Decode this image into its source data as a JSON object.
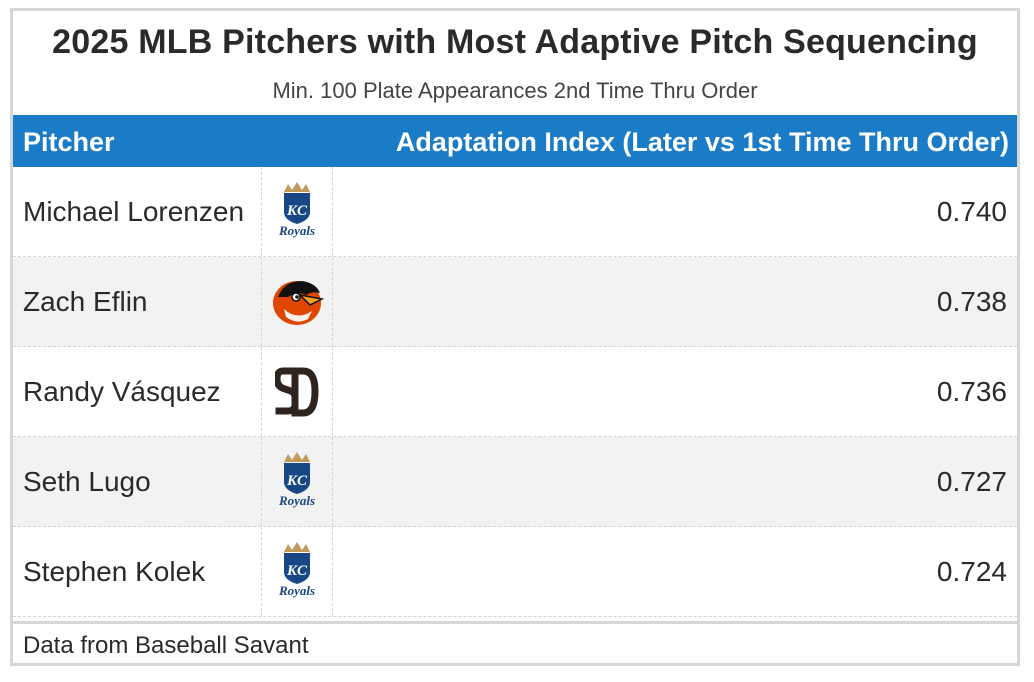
{
  "chart_data": {
    "type": "table",
    "title": "2025 MLB Pitchers with Most Adaptive Pitch Sequencing",
    "subtitle": "Min. 100 Plate Appearances 2nd Time Thru Order",
    "columns": {
      "pitcher": "Pitcher",
      "index": "Adaptation Index (Later vs 1st Time Thru Order)"
    },
    "rows": [
      {
        "pitcher": "Michael Lorenzen",
        "team_logo": "royals-logo-icon",
        "value": "0.740"
      },
      {
        "pitcher": "Zach Eflin",
        "team_logo": "orioles-logo-icon",
        "value": "0.738"
      },
      {
        "pitcher": "Randy Vásquez",
        "team_logo": "padres-logo-icon",
        "value": "0.736"
      },
      {
        "pitcher": "Seth Lugo",
        "team_logo": "royals-logo-icon",
        "value": "0.727"
      },
      {
        "pitcher": "Stephen Kolek",
        "team_logo": "royals-logo-icon",
        "value": "0.724"
      }
    ],
    "source": "Data from Baseball Savant",
    "colors": {
      "header_bg": "#1a7bc7",
      "royals_blue": "#174885",
      "royals_gold": "#c09a5b",
      "orioles_orange": "#df4601",
      "padres_brown": "#2f241d"
    }
  }
}
